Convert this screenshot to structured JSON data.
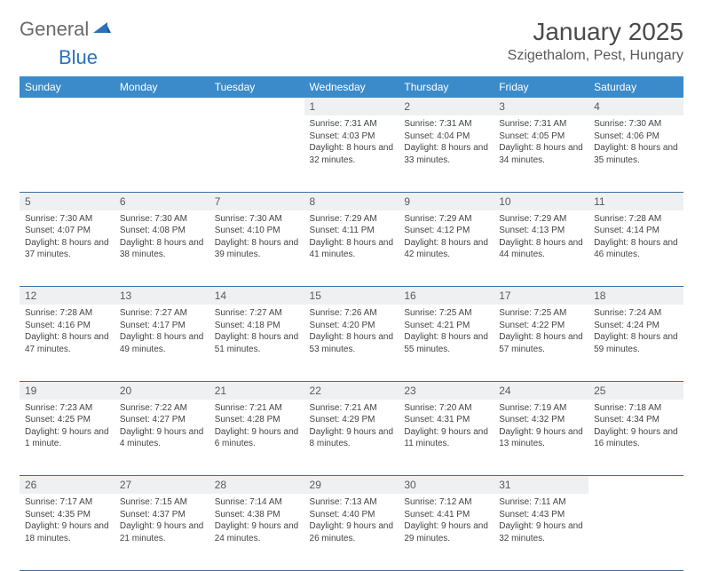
{
  "logo": {
    "general": "General",
    "blue": "Blue"
  },
  "title": "January 2025",
  "location": "Szigethalom, Pest, Hungary",
  "colors": {
    "header_bg": "#3b8bca",
    "header_text": "#ffffff",
    "daynum_bg": "#eef0f2",
    "row_divider": "#3b6fa0",
    "logo_gray": "#6a6a6a",
    "logo_blue": "#2a72bb",
    "title_color": "#4a4a4a",
    "body_text": "#444444"
  },
  "weekdays": [
    "Sunday",
    "Monday",
    "Tuesday",
    "Wednesday",
    "Thursday",
    "Friday",
    "Saturday"
  ],
  "weeks": [
    [
      null,
      null,
      null,
      {
        "d": "1",
        "sr": "7:31 AM",
        "ss": "4:03 PM",
        "dl": "8 hours and 32 minutes."
      },
      {
        "d": "2",
        "sr": "7:31 AM",
        "ss": "4:04 PM",
        "dl": "8 hours and 33 minutes."
      },
      {
        "d": "3",
        "sr": "7:31 AM",
        "ss": "4:05 PM",
        "dl": "8 hours and 34 minutes."
      },
      {
        "d": "4",
        "sr": "7:30 AM",
        "ss": "4:06 PM",
        "dl": "8 hours and 35 minutes."
      }
    ],
    [
      {
        "d": "5",
        "sr": "7:30 AM",
        "ss": "4:07 PM",
        "dl": "8 hours and 37 minutes."
      },
      {
        "d": "6",
        "sr": "7:30 AM",
        "ss": "4:08 PM",
        "dl": "8 hours and 38 minutes."
      },
      {
        "d": "7",
        "sr": "7:30 AM",
        "ss": "4:10 PM",
        "dl": "8 hours and 39 minutes."
      },
      {
        "d": "8",
        "sr": "7:29 AM",
        "ss": "4:11 PM",
        "dl": "8 hours and 41 minutes."
      },
      {
        "d": "9",
        "sr": "7:29 AM",
        "ss": "4:12 PM",
        "dl": "8 hours and 42 minutes."
      },
      {
        "d": "10",
        "sr": "7:29 AM",
        "ss": "4:13 PM",
        "dl": "8 hours and 44 minutes."
      },
      {
        "d": "11",
        "sr": "7:28 AM",
        "ss": "4:14 PM",
        "dl": "8 hours and 46 minutes."
      }
    ],
    [
      {
        "d": "12",
        "sr": "7:28 AM",
        "ss": "4:16 PM",
        "dl": "8 hours and 47 minutes."
      },
      {
        "d": "13",
        "sr": "7:27 AM",
        "ss": "4:17 PM",
        "dl": "8 hours and 49 minutes."
      },
      {
        "d": "14",
        "sr": "7:27 AM",
        "ss": "4:18 PM",
        "dl": "8 hours and 51 minutes."
      },
      {
        "d": "15",
        "sr": "7:26 AM",
        "ss": "4:20 PM",
        "dl": "8 hours and 53 minutes."
      },
      {
        "d": "16",
        "sr": "7:25 AM",
        "ss": "4:21 PM",
        "dl": "8 hours and 55 minutes."
      },
      {
        "d": "17",
        "sr": "7:25 AM",
        "ss": "4:22 PM",
        "dl": "8 hours and 57 minutes."
      },
      {
        "d": "18",
        "sr": "7:24 AM",
        "ss": "4:24 PM",
        "dl": "8 hours and 59 minutes."
      }
    ],
    [
      {
        "d": "19",
        "sr": "7:23 AM",
        "ss": "4:25 PM",
        "dl": "9 hours and 1 minute."
      },
      {
        "d": "20",
        "sr": "7:22 AM",
        "ss": "4:27 PM",
        "dl": "9 hours and 4 minutes."
      },
      {
        "d": "21",
        "sr": "7:21 AM",
        "ss": "4:28 PM",
        "dl": "9 hours and 6 minutes."
      },
      {
        "d": "22",
        "sr": "7:21 AM",
        "ss": "4:29 PM",
        "dl": "9 hours and 8 minutes."
      },
      {
        "d": "23",
        "sr": "7:20 AM",
        "ss": "4:31 PM",
        "dl": "9 hours and 11 minutes."
      },
      {
        "d": "24",
        "sr": "7:19 AM",
        "ss": "4:32 PM",
        "dl": "9 hours and 13 minutes."
      },
      {
        "d": "25",
        "sr": "7:18 AM",
        "ss": "4:34 PM",
        "dl": "9 hours and 16 minutes."
      }
    ],
    [
      {
        "d": "26",
        "sr": "7:17 AM",
        "ss": "4:35 PM",
        "dl": "9 hours and 18 minutes."
      },
      {
        "d": "27",
        "sr": "7:15 AM",
        "ss": "4:37 PM",
        "dl": "9 hours and 21 minutes."
      },
      {
        "d": "28",
        "sr": "7:14 AM",
        "ss": "4:38 PM",
        "dl": "9 hours and 24 minutes."
      },
      {
        "d": "29",
        "sr": "7:13 AM",
        "ss": "4:40 PM",
        "dl": "9 hours and 26 minutes."
      },
      {
        "d": "30",
        "sr": "7:12 AM",
        "ss": "4:41 PM",
        "dl": "9 hours and 29 minutes."
      },
      {
        "d": "31",
        "sr": "7:11 AM",
        "ss": "4:43 PM",
        "dl": "9 hours and 32 minutes."
      },
      null
    ]
  ],
  "labels": {
    "sunrise": "Sunrise:",
    "sunset": "Sunset:",
    "daylight": "Daylight:"
  }
}
